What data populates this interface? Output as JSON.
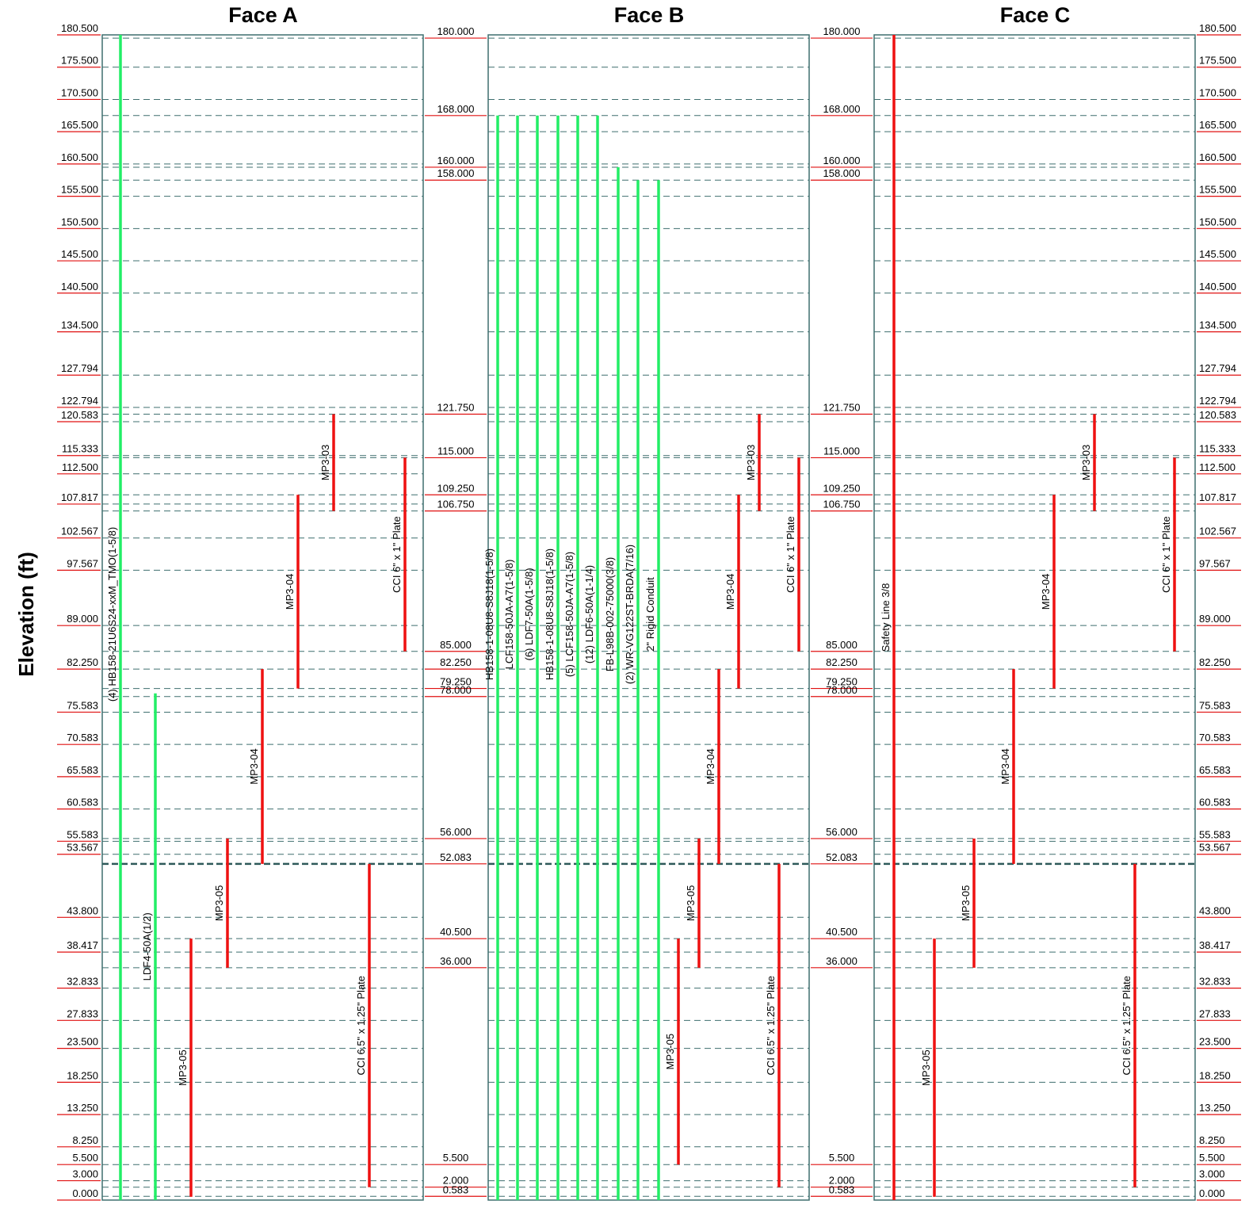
{
  "y_axis_label": "Elevation (ft)",
  "faces": [
    {
      "id": "A",
      "title": "Face A"
    },
    {
      "id": "B",
      "title": "Face B"
    },
    {
      "id": "C",
      "title": "Face C"
    }
  ],
  "outer_elevations": [
    180.5,
    175.5,
    170.5,
    165.5,
    160.5,
    155.5,
    150.5,
    145.5,
    140.5,
    134.5,
    127.794,
    122.794,
    120.583,
    115.333,
    112.5,
    107.817,
    102.567,
    97.567,
    89.0,
    82.25,
    75.583,
    70.583,
    65.583,
    60.583,
    55.583,
    53.567,
    43.8,
    38.417,
    32.833,
    27.833,
    23.5,
    18.25,
    13.25,
    8.25,
    5.5,
    3.0,
    0.0
  ],
  "inner_elevations": [
    180.0,
    168.0,
    160.0,
    158.0,
    121.75,
    115.0,
    109.25,
    106.75,
    85.0,
    82.25,
    79.25,
    78.0,
    56.0,
    52.083,
    40.5,
    36.0,
    5.5,
    2.0,
    0.583
  ],
  "major_elevation": 52.083,
  "members": {
    "A": [
      {
        "label": "(4) HB158-21U6S24-xxM_TMO(1-5/8)",
        "from": 0,
        "to": 180.5,
        "color": "green",
        "col": 0
      },
      {
        "label": "LDF4-50A(1/2)",
        "from": 0,
        "to": 78.5,
        "color": "green",
        "col": 1
      },
      {
        "label": "MP3-05",
        "from": 0.5,
        "to": 40.5,
        "color": "red",
        "col": 2
      },
      {
        "label": "MP3-05",
        "from": 36.0,
        "to": 56.0,
        "color": "red",
        "col": 3
      },
      {
        "label": "MP3-04",
        "from": 52.083,
        "to": 82.25,
        "color": "red",
        "col": 4
      },
      {
        "label": "MP3-04",
        "from": 79.25,
        "to": 109.25,
        "color": "red",
        "col": 5
      },
      {
        "label": "MP3-03",
        "from": 106.75,
        "to": 121.75,
        "color": "red",
        "col": 6
      },
      {
        "label": "CCI 6.5\" x 1.25\" Plate",
        "from": 2.0,
        "to": 52.083,
        "color": "red",
        "col": 7
      },
      {
        "label": "CCI 6\" x 1\" Plate",
        "from": 85.0,
        "to": 115.0,
        "color": "red",
        "col": 8
      }
    ],
    "B": [
      {
        "label": "HB158-1-08U8-S8J18(1-5/8)",
        "from": 0,
        "to": 168.0,
        "color": "green",
        "col": 0
      },
      {
        "label": "LCF158-50JA-A7(1-5/8)",
        "from": 0,
        "to": 168.0,
        "color": "green",
        "col": 1
      },
      {
        "label": "(6) LDF7-50A(1-5/8)",
        "from": 0,
        "to": 168.0,
        "color": "green",
        "col": 2
      },
      {
        "label": "HB158-1-08U8-S8J18(1-5/8)",
        "from": 0,
        "to": 168.0,
        "color": "green",
        "col": 3
      },
      {
        "label": "(5) LCF158-50JA-A7(1-5/8)",
        "from": 0,
        "to": 168.0,
        "color": "green",
        "col": 4
      },
      {
        "label": "(12) LDF6-50A(1-1/4)",
        "from": 0,
        "to": 168.0,
        "color": "green",
        "col": 5
      },
      {
        "label": "FB-L98B-002-75000(3/8)",
        "from": 0,
        "to": 160.0,
        "color": "green",
        "col": 6
      },
      {
        "label": "(2) WR-VG122ST-BRDA(7/16)",
        "from": 0,
        "to": 158.0,
        "color": "green",
        "col": 7
      },
      {
        "label": "2\" Rigid Conduit",
        "from": 0,
        "to": 158.0,
        "color": "green",
        "col": 8
      },
      {
        "label": "MP3-05",
        "from": 5.5,
        "to": 40.5,
        "color": "red",
        "col": 9
      },
      {
        "label": "MP3-05",
        "from": 36.0,
        "to": 56.0,
        "color": "red",
        "col": 10
      },
      {
        "label": "MP3-04",
        "from": 52.083,
        "to": 82.25,
        "color": "red",
        "col": 11
      },
      {
        "label": "MP3-04",
        "from": 79.25,
        "to": 109.25,
        "color": "red",
        "col": 12
      },
      {
        "label": "MP3-03",
        "from": 106.75,
        "to": 121.75,
        "color": "red",
        "col": 13
      },
      {
        "label": "CCI 6.5\" x 1.25\" Plate",
        "from": 2.0,
        "to": 52.083,
        "color": "red",
        "col": 14
      },
      {
        "label": "CCI 6\" x 1\" Plate",
        "from": 85.0,
        "to": 115.0,
        "color": "red",
        "col": 15
      }
    ],
    "C": [
      {
        "label": "Safety Line 3/8",
        "from": 0,
        "to": 180.5,
        "color": "red",
        "col": 0
      },
      {
        "label": "MP3-05",
        "from": 0.5,
        "to": 40.5,
        "color": "red",
        "col": 1
      },
      {
        "label": "MP3-05",
        "from": 36.0,
        "to": 56.0,
        "color": "red",
        "col": 2
      },
      {
        "label": "MP3-04",
        "from": 52.083,
        "to": 82.25,
        "color": "red",
        "col": 3
      },
      {
        "label": "MP3-04",
        "from": 79.25,
        "to": 109.25,
        "color": "red",
        "col": 4
      },
      {
        "label": "MP3-03",
        "from": 106.75,
        "to": 121.75,
        "color": "red",
        "col": 5
      },
      {
        "label": "CCI 6.5\" x 1.25\" Plate",
        "from": 2.0,
        "to": 52.083,
        "color": "red",
        "col": 6
      },
      {
        "label": "CCI 6\" x 1\" Plate",
        "from": 85.0,
        "to": 115.0,
        "color": "red",
        "col": 7
      }
    ]
  }
}
